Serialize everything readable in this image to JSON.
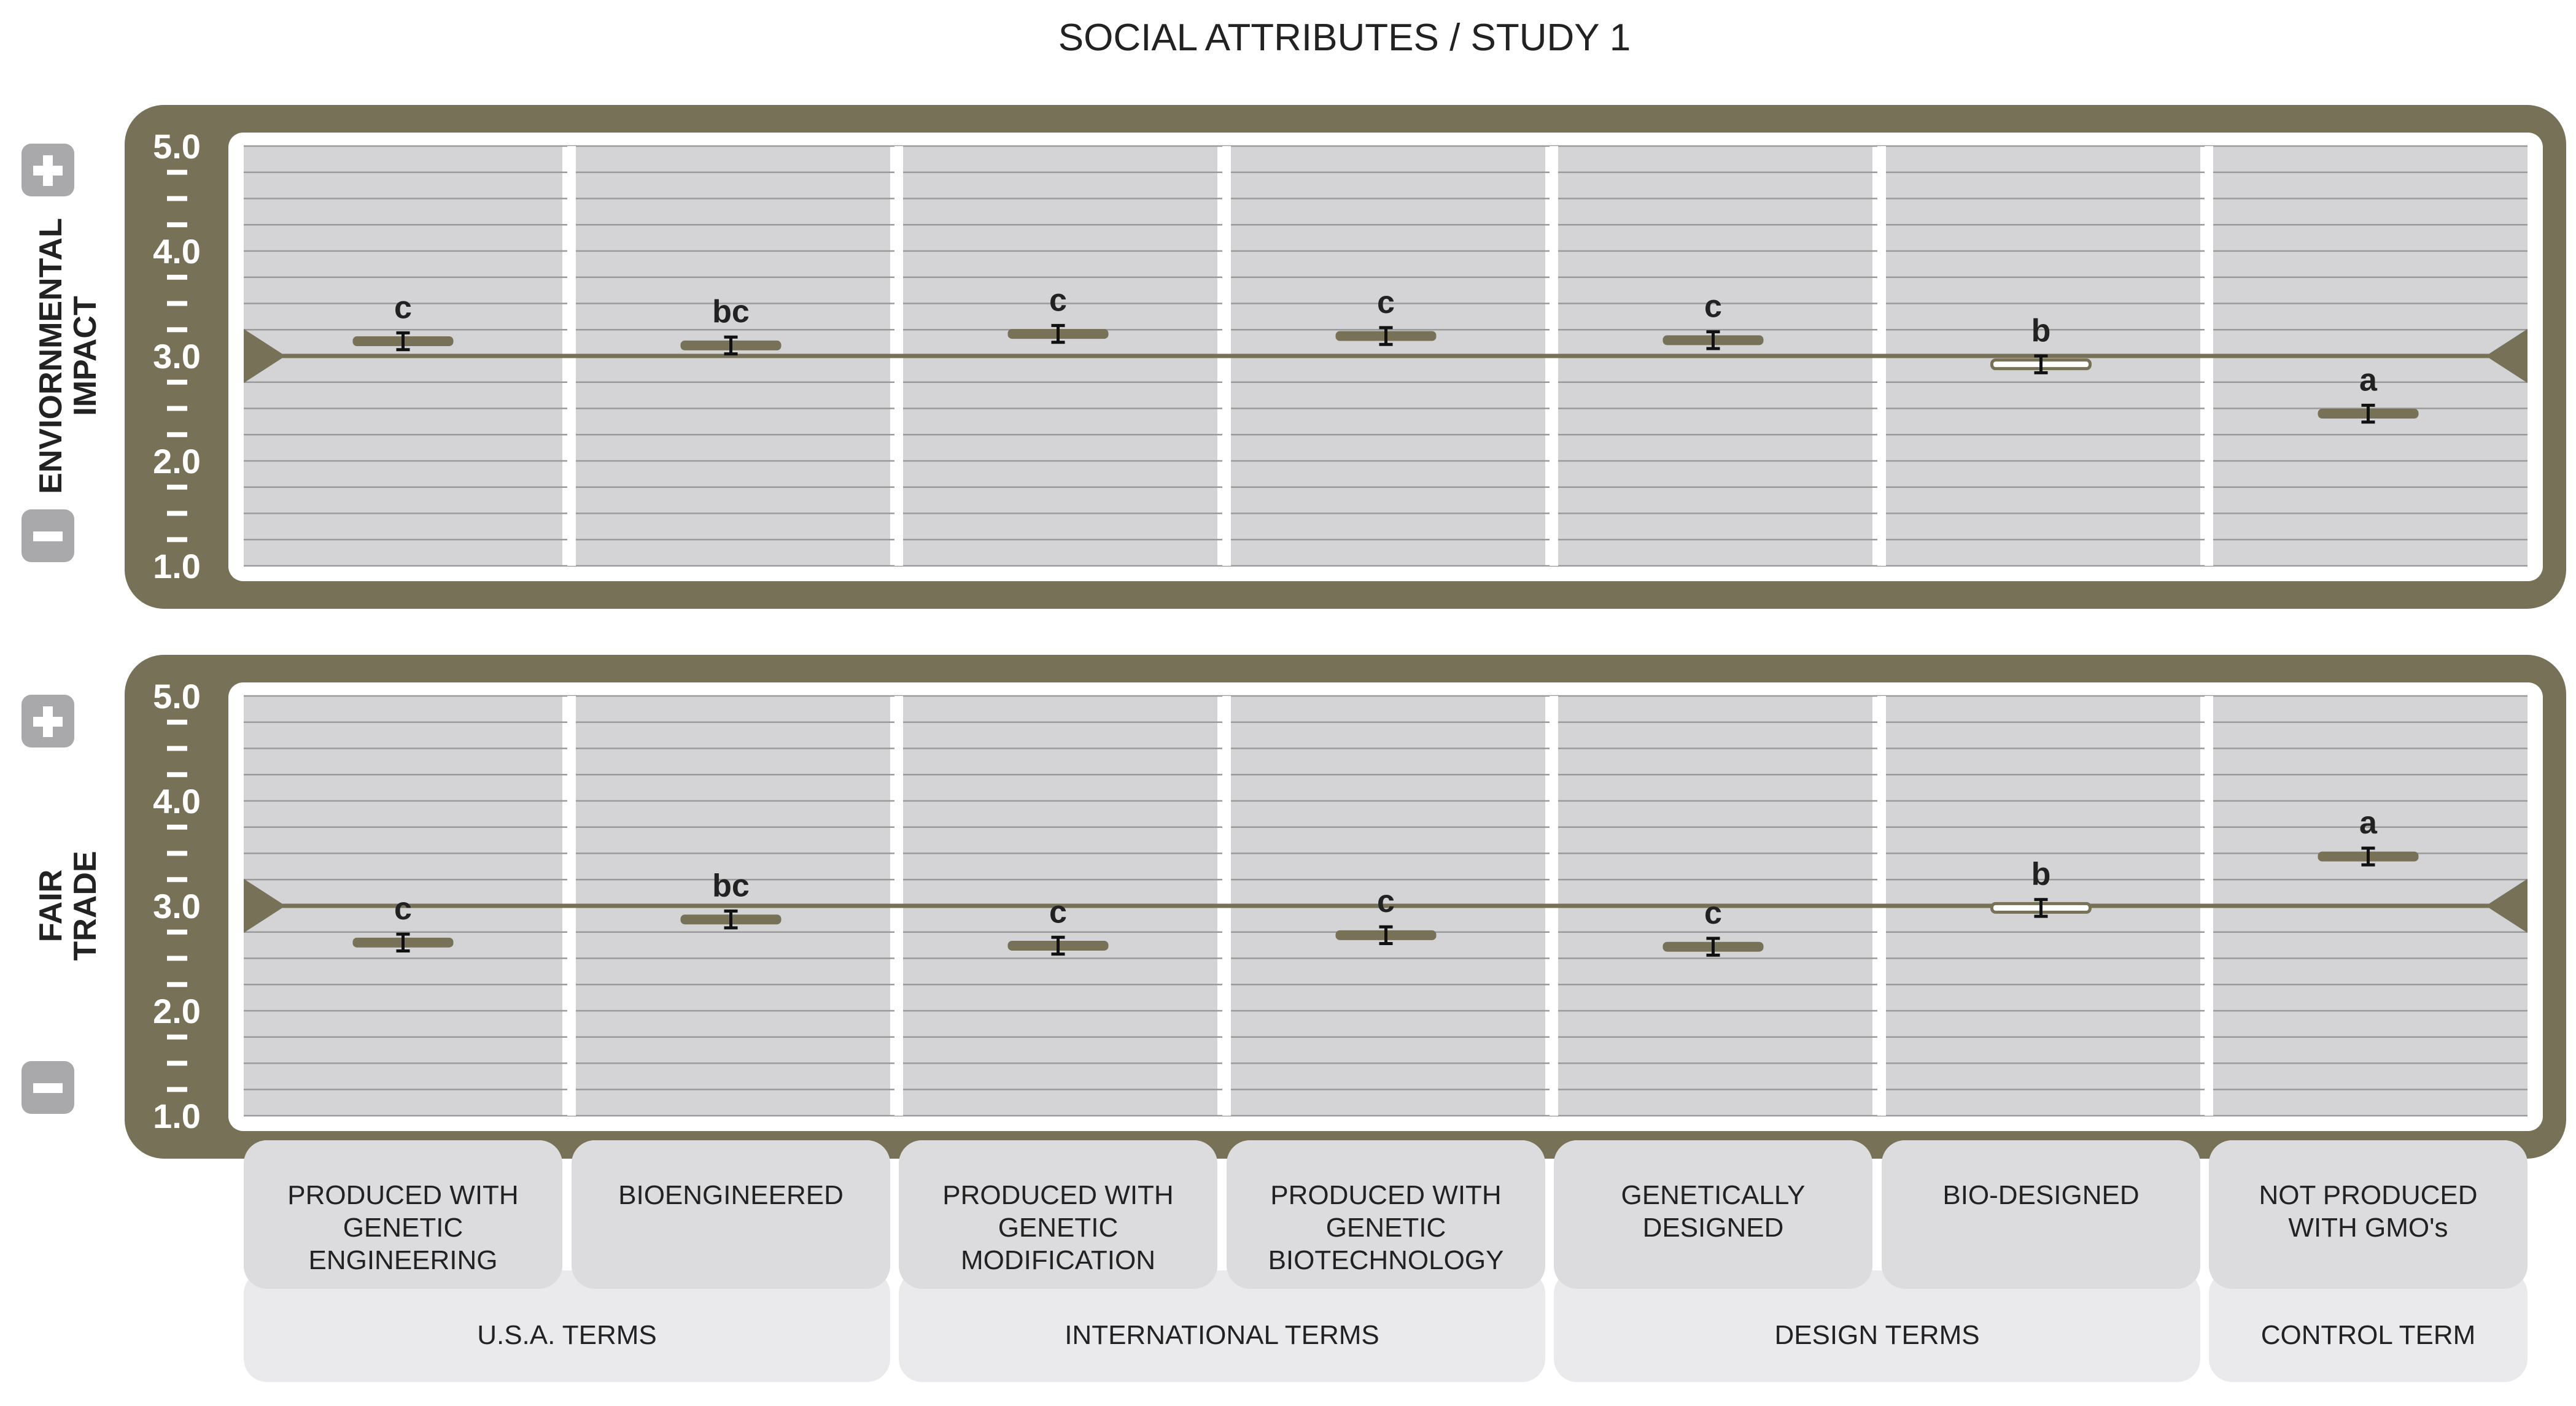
{
  "chart_data": {
    "type": "scatter",
    "title": "SOCIAL ATTRIBUTES / STUDY 1",
    "categories": [
      "PRODUCED WITH GENETIC ENGINEERING",
      "BIOENGINEERED",
      "PRODUCED WITH GENETIC MODIFICATION",
      "PRODUCED WITH GENETIC BIOTECHNOLOGY",
      "GENETICALLY DESIGNED",
      "BIO-DESIGNED",
      "NOT PRODUCED WITH GMO's"
    ],
    "category_lines": [
      [
        "PRODUCED WITH",
        "GENETIC",
        "ENGINEERING"
      ],
      [
        "BIOENGINEERED"
      ],
      [
        "PRODUCED WITH",
        "GENETIC",
        "MODIFICATION"
      ],
      [
        "PRODUCED WITH",
        "GENETIC",
        "BIOTECHNOLOGY"
      ],
      [
        "GENETICALLY",
        "DESIGNED"
      ],
      [
        "BIO-DESIGNED"
      ],
      [
        "NOT PRODUCED",
        "WITH GMO's"
      ]
    ],
    "groups": [
      {
        "label": "U.S.A. TERMS",
        "span": [
          0,
          1
        ]
      },
      {
        "label": "INTERNATIONAL TERMS",
        "span": [
          2,
          3
        ]
      },
      {
        "label": "DESIGN TERMS",
        "span": [
          4,
          5
        ]
      },
      {
        "label": "CONTROL TERM",
        "span": [
          6,
          6
        ]
      }
    ],
    "ylim": [
      1.0,
      5.0
    ],
    "yticks": [
      "1.0",
      "2.0",
      "3.0",
      "4.0",
      "5.0"
    ],
    "reference_line": 3.0,
    "grid": true,
    "panels": [
      {
        "ylabel_lines": [
          "ENVIORNMENTAL",
          "IMPACT"
        ],
        "values": [
          3.14,
          3.1,
          3.21,
          3.19,
          3.15,
          2.92,
          2.45
        ],
        "errors": [
          0.08,
          0.08,
          0.08,
          0.08,
          0.08,
          0.08,
          0.08
        ],
        "letters": [
          "c",
          "bc",
          "c",
          "c",
          "c",
          "b",
          "a"
        ],
        "hollow": [
          false,
          false,
          false,
          false,
          false,
          true,
          false
        ]
      },
      {
        "ylabel_lines": [
          "FAIR",
          "TRADE"
        ],
        "values": [
          2.65,
          2.87,
          2.62,
          2.72,
          2.61,
          2.98,
          3.47
        ],
        "errors": [
          0.08,
          0.08,
          0.08,
          0.08,
          0.08,
          0.08,
          0.08
        ],
        "letters": [
          "c",
          "bc",
          "c",
          "c",
          "c",
          "b",
          "a"
        ],
        "hollow": [
          false,
          false,
          false,
          false,
          false,
          true,
          false
        ]
      }
    ],
    "colors": {
      "frame": "#777158",
      "marker": "#777158",
      "column_bg": "#d4d4d6",
      "grid": "#9a9a9a",
      "sign_bg": "#a9a9ab",
      "label_box": "#dcdcde",
      "group_box": "#eaeaec",
      "text": "#222222"
    }
  }
}
